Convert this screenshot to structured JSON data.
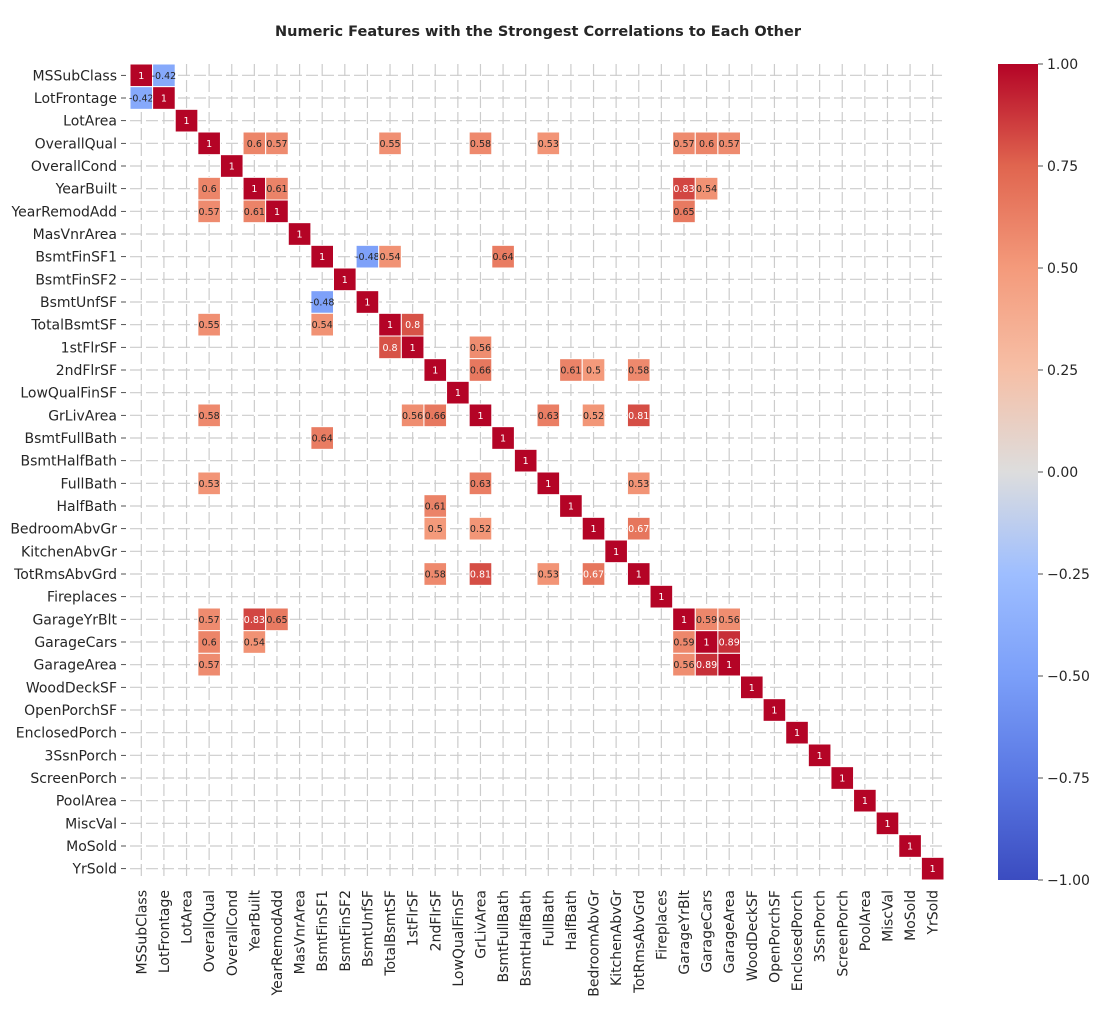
{
  "chart_data": {
    "type": "heatmap",
    "title": "Numeric Features with the Strongest Correlations to Each Other",
    "xlabel": "",
    "ylabel": "",
    "labels": [
      "MSSubClass",
      "LotFrontage",
      "LotArea",
      "OverallQual",
      "OverallCond",
      "YearBuilt",
      "YearRemodAdd",
      "MasVnrArea",
      "BsmtFinSF1",
      "BsmtFinSF2",
      "BsmtUnfSF",
      "TotalBsmtSF",
      "1stFlrSF",
      "2ndFlrSF",
      "LowQualFinSF",
      "GrLivArea",
      "BsmtFullBath",
      "BsmtHalfBath",
      "FullBath",
      "HalfBath",
      "BedroomAbvGr",
      "KitchenAbvGr",
      "TotRmsAbvGrd",
      "Fireplaces",
      "GarageYrBlt",
      "GarageCars",
      "GarageArea",
      "WoodDeckSF",
      "OpenPorchSF",
      "EnclosedPorch",
      "3SsnPorch",
      "ScreenPorch",
      "PoolArea",
      "MiscVal",
      "MoSold",
      "YrSold"
    ],
    "cells": [
      {
        "row": "MSSubClass",
        "col": "MSSubClass",
        "value": 1
      },
      {
        "row": "MSSubClass",
        "col": "LotFrontage",
        "value": -0.42
      },
      {
        "row": "LotFrontage",
        "col": "MSSubClass",
        "value": -0.42
      },
      {
        "row": "LotFrontage",
        "col": "LotFrontage",
        "value": 1
      },
      {
        "row": "LotArea",
        "col": "LotArea",
        "value": 1
      },
      {
        "row": "OverallQual",
        "col": "OverallQual",
        "value": 1
      },
      {
        "row": "OverallQual",
        "col": "YearBuilt",
        "value": 0.6
      },
      {
        "row": "OverallQual",
        "col": "YearRemodAdd",
        "value": 0.57
      },
      {
        "row": "OverallQual",
        "col": "TotalBsmtSF",
        "value": 0.55
      },
      {
        "row": "OverallQual",
        "col": "GrLivArea",
        "value": 0.58
      },
      {
        "row": "OverallQual",
        "col": "FullBath",
        "value": 0.53
      },
      {
        "row": "OverallQual",
        "col": "GarageYrBlt",
        "value": 0.57
      },
      {
        "row": "OverallQual",
        "col": "GarageCars",
        "value": 0.6
      },
      {
        "row": "OverallQual",
        "col": "GarageArea",
        "value": 0.57
      },
      {
        "row": "OverallCond",
        "col": "OverallCond",
        "value": 1
      },
      {
        "row": "YearBuilt",
        "col": "OverallQual",
        "value": 0.6
      },
      {
        "row": "YearBuilt",
        "col": "YearBuilt",
        "value": 1
      },
      {
        "row": "YearBuilt",
        "col": "YearRemodAdd",
        "value": 0.61
      },
      {
        "row": "YearBuilt",
        "col": "GarageYrBlt",
        "value": 0.83
      },
      {
        "row": "YearBuilt",
        "col": "GarageCars",
        "value": 0.54
      },
      {
        "row": "YearRemodAdd",
        "col": "OverallQual",
        "value": 0.57
      },
      {
        "row": "YearRemodAdd",
        "col": "YearBuilt",
        "value": 0.61
      },
      {
        "row": "YearRemodAdd",
        "col": "YearRemodAdd",
        "value": 1
      },
      {
        "row": "YearRemodAdd",
        "col": "GarageYrBlt",
        "value": 0.65
      },
      {
        "row": "MasVnrArea",
        "col": "MasVnrArea",
        "value": 1
      },
      {
        "row": "BsmtFinSF1",
        "col": "BsmtFinSF1",
        "value": 1
      },
      {
        "row": "BsmtFinSF1",
        "col": "BsmtUnfSF",
        "value": -0.48
      },
      {
        "row": "BsmtFinSF1",
        "col": "TotalBsmtSF",
        "value": 0.54
      },
      {
        "row": "BsmtFinSF1",
        "col": "BsmtFullBath",
        "value": 0.64
      },
      {
        "row": "BsmtFinSF2",
        "col": "BsmtFinSF2",
        "value": 1
      },
      {
        "row": "BsmtUnfSF",
        "col": "BsmtFinSF1",
        "value": -0.48
      },
      {
        "row": "BsmtUnfSF",
        "col": "BsmtUnfSF",
        "value": 1
      },
      {
        "row": "TotalBsmtSF",
        "col": "OverallQual",
        "value": 0.55
      },
      {
        "row": "TotalBsmtSF",
        "col": "BsmtFinSF1",
        "value": 0.54
      },
      {
        "row": "TotalBsmtSF",
        "col": "TotalBsmtSF",
        "value": 1
      },
      {
        "row": "TotalBsmtSF",
        "col": "1stFlrSF",
        "value": 0.8
      },
      {
        "row": "1stFlrSF",
        "col": "TotalBsmtSF",
        "value": 0.8
      },
      {
        "row": "1stFlrSF",
        "col": "1stFlrSF",
        "value": 1
      },
      {
        "row": "1stFlrSF",
        "col": "GrLivArea",
        "value": 0.56
      },
      {
        "row": "2ndFlrSF",
        "col": "2ndFlrSF",
        "value": 1
      },
      {
        "row": "2ndFlrSF",
        "col": "GrLivArea",
        "value": 0.66
      },
      {
        "row": "2ndFlrSF",
        "col": "HalfBath",
        "value": 0.61
      },
      {
        "row": "2ndFlrSF",
        "col": "BedroomAbvGr",
        "value": 0.5
      },
      {
        "row": "2ndFlrSF",
        "col": "TotRmsAbvGrd",
        "value": 0.58
      },
      {
        "row": "LowQualFinSF",
        "col": "LowQualFinSF",
        "value": 1
      },
      {
        "row": "GrLivArea",
        "col": "OverallQual",
        "value": 0.58
      },
      {
        "row": "GrLivArea",
        "col": "1stFlrSF",
        "value": 0.56
      },
      {
        "row": "GrLivArea",
        "col": "2ndFlrSF",
        "value": 0.66
      },
      {
        "row": "GrLivArea",
        "col": "GrLivArea",
        "value": 1
      },
      {
        "row": "GrLivArea",
        "col": "FullBath",
        "value": 0.63
      },
      {
        "row": "GrLivArea",
        "col": "BedroomAbvGr",
        "value": 0.52
      },
      {
        "row": "GrLivArea",
        "col": "TotRmsAbvGrd",
        "value": 0.81
      },
      {
        "row": "BsmtFullBath",
        "col": "BsmtFinSF1",
        "value": 0.64
      },
      {
        "row": "BsmtFullBath",
        "col": "BsmtFullBath",
        "value": 1
      },
      {
        "row": "BsmtHalfBath",
        "col": "BsmtHalfBath",
        "value": 1
      },
      {
        "row": "FullBath",
        "col": "OverallQual",
        "value": 0.53
      },
      {
        "row": "FullBath",
        "col": "GrLivArea",
        "value": 0.63
      },
      {
        "row": "FullBath",
        "col": "FullBath",
        "value": 1
      },
      {
        "row": "FullBath",
        "col": "TotRmsAbvGrd",
        "value": 0.53
      },
      {
        "row": "HalfBath",
        "col": "2ndFlrSF",
        "value": 0.61
      },
      {
        "row": "HalfBath",
        "col": "HalfBath",
        "value": 1
      },
      {
        "row": "BedroomAbvGr",
        "col": "2ndFlrSF",
        "value": 0.5
      },
      {
        "row": "BedroomAbvGr",
        "col": "GrLivArea",
        "value": 0.52
      },
      {
        "row": "BedroomAbvGr",
        "col": "BedroomAbvGr",
        "value": 1
      },
      {
        "row": "BedroomAbvGr",
        "col": "TotRmsAbvGrd",
        "value": 0.67
      },
      {
        "row": "KitchenAbvGr",
        "col": "KitchenAbvGr",
        "value": 1
      },
      {
        "row": "TotRmsAbvGrd",
        "col": "2ndFlrSF",
        "value": 0.58
      },
      {
        "row": "TotRmsAbvGrd",
        "col": "GrLivArea",
        "value": 0.81
      },
      {
        "row": "TotRmsAbvGrd",
        "col": "FullBath",
        "value": 0.53
      },
      {
        "row": "TotRmsAbvGrd",
        "col": "BedroomAbvGr",
        "value": 0.67
      },
      {
        "row": "TotRmsAbvGrd",
        "col": "TotRmsAbvGrd",
        "value": 1
      },
      {
        "row": "Fireplaces",
        "col": "Fireplaces",
        "value": 1
      },
      {
        "row": "GarageYrBlt",
        "col": "OverallQual",
        "value": 0.57
      },
      {
        "row": "GarageYrBlt",
        "col": "YearBuilt",
        "value": 0.83
      },
      {
        "row": "GarageYrBlt",
        "col": "YearRemodAdd",
        "value": 0.65
      },
      {
        "row": "GarageYrBlt",
        "col": "GarageYrBlt",
        "value": 1
      },
      {
        "row": "GarageYrBlt",
        "col": "GarageCars",
        "value": 0.59
      },
      {
        "row": "GarageYrBlt",
        "col": "GarageArea",
        "value": 0.56
      },
      {
        "row": "GarageCars",
        "col": "OverallQual",
        "value": 0.6
      },
      {
        "row": "GarageCars",
        "col": "YearBuilt",
        "value": 0.54
      },
      {
        "row": "GarageCars",
        "col": "GarageYrBlt",
        "value": 0.59
      },
      {
        "row": "GarageCars",
        "col": "GarageCars",
        "value": 1
      },
      {
        "row": "GarageCars",
        "col": "GarageArea",
        "value": 0.89
      },
      {
        "row": "GarageArea",
        "col": "OverallQual",
        "value": 0.57
      },
      {
        "row": "GarageArea",
        "col": "GarageYrBlt",
        "value": 0.56
      },
      {
        "row": "GarageArea",
        "col": "GarageCars",
        "value": 0.89
      },
      {
        "row": "GarageArea",
        "col": "GarageArea",
        "value": 1
      },
      {
        "row": "WoodDeckSF",
        "col": "WoodDeckSF",
        "value": 1
      },
      {
        "row": "OpenPorchSF",
        "col": "OpenPorchSF",
        "value": 1
      },
      {
        "row": "EnclosedPorch",
        "col": "EnclosedPorch",
        "value": 1
      },
      {
        "row": "3SsnPorch",
        "col": "3SsnPorch",
        "value": 1
      },
      {
        "row": "ScreenPorch",
        "col": "ScreenPorch",
        "value": 1
      },
      {
        "row": "PoolArea",
        "col": "PoolArea",
        "value": 1
      },
      {
        "row": "MiscVal",
        "col": "MiscVal",
        "value": 1
      },
      {
        "row": "MoSold",
        "col": "MoSold",
        "value": 1
      },
      {
        "row": "YrSold",
        "col": "YrSold",
        "value": 1
      }
    ],
    "vmin": -1.0,
    "vmax": 1.0,
    "colormap": "coolwarm",
    "colorbar_ticks": [
      "1.00",
      "0.75",
      "0.50",
      "0.25",
      "0.00",
      "−0.25",
      "−0.50",
      "−0.75",
      "−1.00"
    ],
    "colorbar_tick_values": [
      1.0,
      0.75,
      0.5,
      0.25,
      0.0,
      -0.25,
      -0.5,
      -0.75,
      -1.0
    ],
    "grid": true,
    "colors": {
      "grid": "#cccccc",
      "text": "#262626",
      "cell_border": "#ffffff"
    }
  }
}
